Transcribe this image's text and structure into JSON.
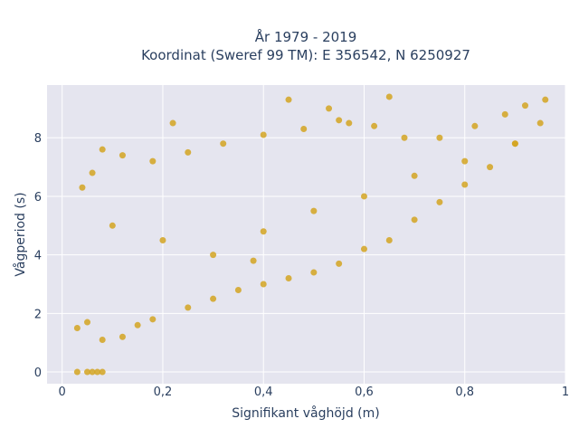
{
  "chart_data": {
    "type": "scatter",
    "title_lines": [
      "År 1979 - 2019",
      "Koordinat (Sweref 99 TM): E 356542, N 6250927"
    ],
    "xlabel": "Signifikant våghöjd (m)",
    "ylabel": "Vågperiod (s)",
    "xlim": [
      -0.03,
      1.0
    ],
    "ylim": [
      -0.4,
      9.8
    ],
    "xticks": [
      0,
      0.2,
      0.4,
      0.6,
      0.8,
      1
    ],
    "xtick_labels": [
      "0",
      "0,2",
      "0,4",
      "0,6",
      "0,8",
      "1"
    ],
    "yticks": [
      0,
      2,
      4,
      6,
      8
    ],
    "ytick_labels": [
      "0",
      "2",
      "4",
      "6",
      "8"
    ],
    "grid": true,
    "marker_color": "#D4A421",
    "plot_bgcolor": "#E5E5EF",
    "series": [
      {
        "x": [
          0.03,
          0.05,
          0.06,
          0.07,
          0.08,
          0.03,
          0.05,
          0.08,
          0.12,
          0.15,
          0.18,
          0.25,
          0.3,
          0.35,
          0.4,
          0.45,
          0.5,
          0.55,
          0.6,
          0.65,
          0.7,
          0.75,
          0.8,
          0.85,
          0.9,
          0.95,
          0.96,
          0.92,
          0.88,
          0.82,
          0.75,
          0.68,
          0.62,
          0.55,
          0.48,
          0.4,
          0.32,
          0.25,
          0.18,
          0.12,
          0.08,
          0.06,
          0.04,
          0.1,
          0.2,
          0.3,
          0.4,
          0.5,
          0.6,
          0.7,
          0.8,
          0.9,
          0.45,
          0.53,
          0.57,
          0.65,
          0.22,
          0.38
        ],
        "y": [
          0.0,
          0.0,
          0.0,
          0.0,
          0.0,
          1.5,
          1.7,
          1.1,
          1.2,
          1.6,
          1.8,
          2.2,
          2.5,
          2.8,
          3.0,
          3.2,
          3.4,
          3.7,
          4.2,
          4.5,
          5.2,
          5.8,
          6.4,
          7.0,
          7.8,
          8.5,
          9.3,
          9.1,
          8.8,
          8.4,
          8.0,
          8.0,
          8.4,
          8.6,
          8.3,
          8.1,
          7.8,
          7.5,
          7.2,
          7.4,
          7.6,
          6.8,
          6.3,
          5.0,
          4.5,
          4.0,
          4.8,
          5.5,
          6.0,
          6.7,
          7.2,
          7.8,
          9.3,
          9.0,
          8.5,
          9.4,
          8.5,
          3.8
        ]
      }
    ]
  }
}
